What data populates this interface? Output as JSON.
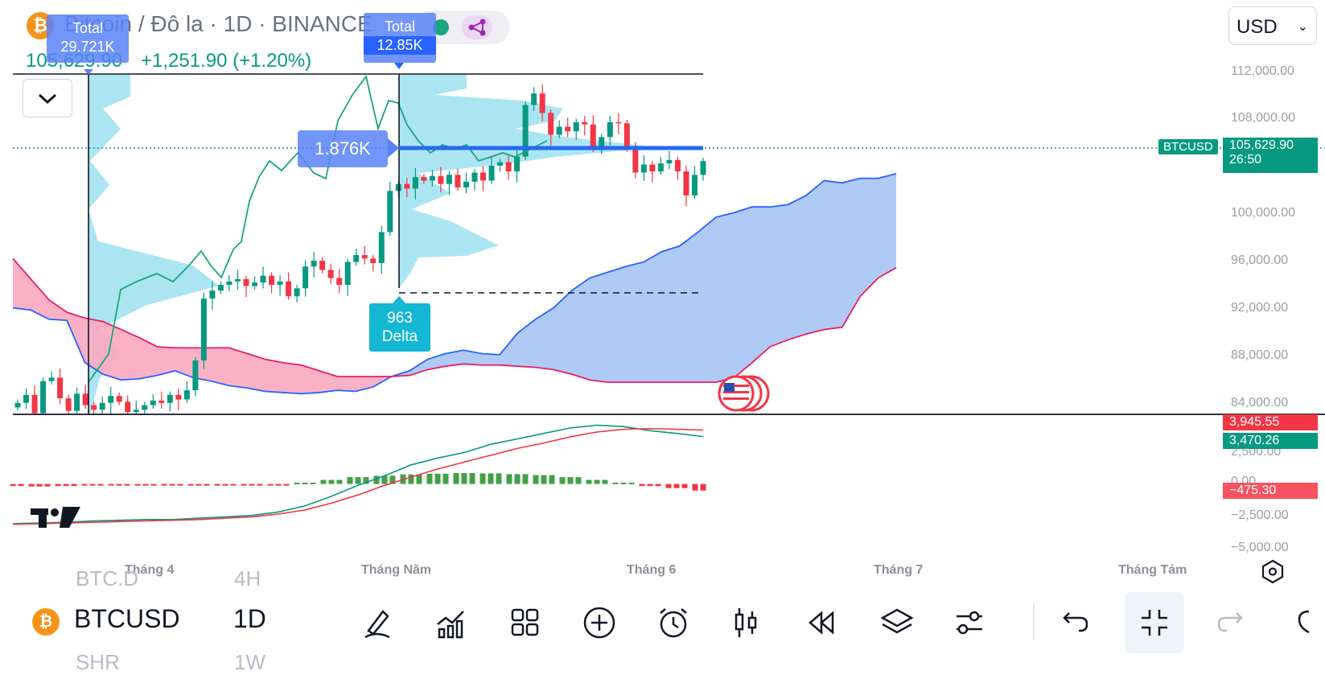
{
  "header": {
    "logo_letter": "₿",
    "title": "Bitcoin / Đô la · 1D · BINANCE",
    "price": "105,629.90",
    "change": "+1,251.90 (+1.20%)"
  },
  "currency_select": {
    "value": "USD"
  },
  "annotations": {
    "total_left": {
      "title": "Total",
      "value": "29.721K"
    },
    "total_right": {
      "title": "Total",
      "value": "12.85K"
    },
    "volume_tag": "1.876K",
    "delta_value": "963",
    "delta_label": "Delta"
  },
  "price_axis": {
    "ticks": [
      "112,000.00",
      "108,000.00",
      "100,000.00",
      "96,000.00",
      "92,000.00",
      "88,000.00",
      "84,000.00"
    ],
    "symbol_tag": "BTCUSD",
    "last_price": "105,629.90",
    "countdown": "26:50"
  },
  "macd_axis": {
    "ticks": [
      "2,500.00",
      "0.00",
      "−2,500.00",
      "−5,000.00"
    ],
    "macd_value": "3,945.55",
    "signal_value": "3,470.26",
    "histogram_value": "−475.30"
  },
  "time_axis": {
    "ticks": [
      "Tháng 4",
      "Tháng Năm",
      "Tháng 6",
      "Tháng 7",
      "Tháng Tám"
    ]
  },
  "toolbar": {
    "symbol": "BTCUSD",
    "interval": "1D",
    "ghost_top_left": "BTC.D",
    "ghost_top_right": "4H",
    "ghost_bottom_left": "SHR",
    "ghost_bottom_right": "1W"
  },
  "colors": {
    "up": "#089981",
    "down": "#f23645",
    "cloud_blue": "#a7c4f5",
    "cloud_pink": "#f9a8c0",
    "volume_profile": "#8fdced",
    "accent_blue": "#5883f7"
  },
  "chart_data": [
    {
      "type": "candlestick",
      "title": "Bitcoin / Đô la · 1D · BINANCE",
      "xlabel": "",
      "ylabel": "",
      "x_ticks": [
        "Tháng 4",
        "Tháng Năm",
        "Tháng 6",
        "Tháng 7",
        "Tháng Tám"
      ],
      "y_ticks": [
        84000,
        88000,
        92000,
        96000,
        100000,
        108000,
        112000
      ],
      "ylim": [
        83500,
        113200
      ],
      "last_price": 105629.9,
      "grid": false,
      "candles_close": [
        84500,
        85200,
        83600,
        86400,
        86700,
        84900,
        83800,
        85300,
        84300,
        83900,
        84500,
        85100,
        84600,
        83700,
        83900,
        84300,
        84700,
        84500,
        85200,
        84800,
        85600,
        88200,
        93600,
        94300,
        94800,
        95100,
        95300,
        94700,
        95000,
        95600,
        94800,
        95100,
        93800,
        94500,
        96400,
        96900,
        96100,
        95400,
        94800,
        96800,
        97400,
        97100,
        96700,
        99400,
        103000,
        103600,
        103200,
        104200,
        103900,
        104300,
        103600,
        104400,
        103300,
        103800,
        104600,
        103900,
        105200,
        105500,
        104700,
        106000,
        110500,
        111500,
        109800,
        107900,
        108600,
        108200,
        109000,
        108800,
        106700,
        107700,
        109000,
        108900,
        106700,
        104600,
        105300,
        104700,
        105400,
        105700,
        104700,
        102600,
        104400,
        105600
      ],
      "ichimoku_span_a": [
        92800,
        92600,
        91800,
        91700,
        88000,
        87000,
        86500,
        86600,
        86900,
        87300,
        86700,
        86400,
        86000,
        85800,
        85500,
        85400,
        85300,
        85400,
        85600,
        85500,
        85900,
        86800,
        87300,
        88300,
        88800,
        89100,
        88800,
        88700,
        90600,
        91800,
        92800,
        94300,
        95400,
        95900,
        96400,
        96800,
        97700,
        98200,
        99400,
        100700,
        101100,
        101600,
        101600,
        101800,
        102600,
        103900,
        103700,
        104100,
        104100,
        104500
      ],
      "ichimoku_span_b": [
        97100,
        95300,
        93500,
        92400,
        91900,
        91600,
        90900,
        90200,
        89400,
        89300,
        89300,
        89300,
        89300,
        88800,
        88300,
        88000,
        87800,
        87300,
        86800,
        86800,
        86800,
        86800,
        86900,
        87400,
        87700,
        87900,
        87800,
        87800,
        87700,
        87600,
        87400,
        87000,
        86500,
        86300,
        86300,
        86300,
        86300,
        86300,
        86300,
        86300,
        86700,
        88000,
        89400,
        90000,
        90500,
        90900,
        91100,
        93800,
        95400,
        96300
      ]
    },
    {
      "type": "line",
      "title": "MACD",
      "series": [
        {
          "name": "",
          "values": [
            -2900,
            -2850,
            -2800,
            -2700,
            -2650,
            -2600,
            -2600,
            -2500,
            -2400,
            -2300,
            -2050,
            -1600,
            -900,
            -100,
            600,
            1400,
            1900,
            2300,
            2900,
            3300,
            3700,
            4100,
            4300,
            4200,
            3900,
            3700,
            3470
          ]
        },
        {
          "name": "",
          "values": [
            -2950,
            -2900,
            -2850,
            -2800,
            -2750,
            -2700,
            -2650,
            -2600,
            -2500,
            -2400,
            -2200,
            -1900,
            -1400,
            -800,
            -100,
            500,
            1100,
            1600,
            2100,
            2600,
            3000,
            3450,
            3800,
            4000,
            4050,
            4000,
            3945
          ]
        }
      ],
      "histogram": [
        -150,
        -180,
        -150,
        -100,
        -60,
        -50,
        -40,
        -60,
        -50,
        -30,
        -30,
        100,
        300,
        500,
        600,
        700,
        750,
        800,
        780,
        720,
        650,
        500,
        300,
        100,
        -150,
        -300,
        -475
      ],
      "ylim": [
        -5200,
        4800
      ]
    }
  ]
}
